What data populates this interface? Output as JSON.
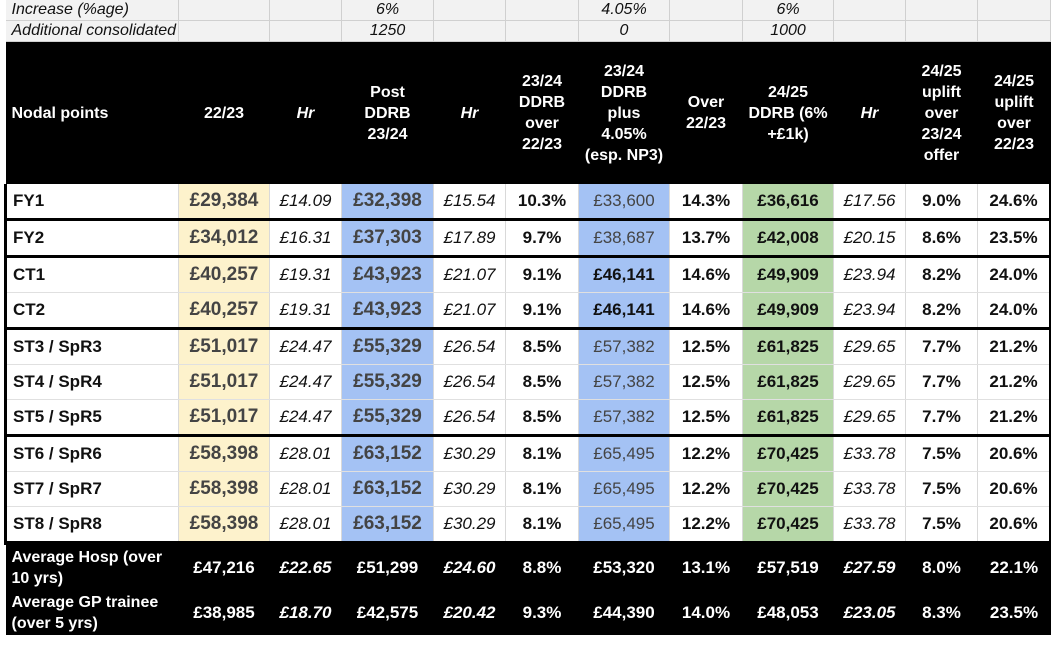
{
  "params": [
    {
      "label": "Increase (%age)",
      "post": "6%",
      "plus": "4.05%",
      "ddrb2425": "6%"
    },
    {
      "label": "Additional consolidated",
      "post": "1250",
      "plus": "0",
      "ddrb2425": "1000"
    }
  ],
  "headers": {
    "nodal": "Nodal points",
    "y2223": "22/23",
    "hr1": "Hr",
    "post": "Post DDRB 23/24",
    "hr2": "Hr",
    "over2324": "23/24 DDRB over 22/23",
    "plus": "23/24 DDRB plus 4.05% (esp. NP3)",
    "over2223": "Over 22/23",
    "ddrb2425": "24/25 DDRB (6% +£1k)",
    "hr3": "Hr",
    "uplift2324": "24/25 uplift over 23/24 offer",
    "uplift2223": "24/25 uplift over 22/23"
  },
  "rows": [
    {
      "label": "FY1",
      "y2223": "£29,384",
      "hr1": "£14.09",
      "post": "£32,398",
      "hr2": "£15.54",
      "pct1": "10.3%",
      "plus": "£33,600",
      "over": "14.3%",
      "ddrb": "£36,616",
      "hr3": "£17.56",
      "up1": "9.0%",
      "up2": "24.6%"
    },
    {
      "label": "FY2",
      "y2223": "£34,012",
      "hr1": "£16.31",
      "post": "£37,303",
      "hr2": "£17.89",
      "pct1": "9.7%",
      "plus": "£38,687",
      "over": "13.7%",
      "ddrb": "£42,008",
      "hr3": "£20.15",
      "up1": "8.6%",
      "up2": "23.5%"
    },
    {
      "label": "CT1",
      "y2223": "£40,257",
      "hr1": "£19.31",
      "post": "£43,923",
      "hr2": "£21.07",
      "pct1": "9.1%",
      "plus": "£46,141",
      "over": "14.6%",
      "ddrb": "£49,909",
      "hr3": "£23.94",
      "up1": "8.2%",
      "up2": "24.0%"
    },
    {
      "label": "CT2",
      "y2223": "£40,257",
      "hr1": "£19.31",
      "post": "£43,923",
      "hr2": "£21.07",
      "pct1": "9.1%",
      "plus": "£46,141",
      "over": "14.6%",
      "ddrb": "£49,909",
      "hr3": "£23.94",
      "up1": "8.2%",
      "up2": "24.0%"
    },
    {
      "label": "ST3 / SpR3",
      "y2223": "£51,017",
      "hr1": "£24.47",
      "post": "£55,329",
      "hr2": "£26.54",
      "pct1": "8.5%",
      "plus": "£57,382",
      "over": "12.5%",
      "ddrb": "£61,825",
      "hr3": "£29.65",
      "up1": "7.7%",
      "up2": "21.2%"
    },
    {
      "label": "ST4 / SpR4",
      "y2223": "£51,017",
      "hr1": "£24.47",
      "post": "£55,329",
      "hr2": "£26.54",
      "pct1": "8.5%",
      "plus": "£57,382",
      "over": "12.5%",
      "ddrb": "£61,825",
      "hr3": "£29.65",
      "up1": "7.7%",
      "up2": "21.2%"
    },
    {
      "label": "ST5 / SpR5",
      "y2223": "£51,017",
      "hr1": "£24.47",
      "post": "£55,329",
      "hr2": "£26.54",
      "pct1": "8.5%",
      "plus": "£57,382",
      "over": "12.5%",
      "ddrb": "£61,825",
      "hr3": "£29.65",
      "up1": "7.7%",
      "up2": "21.2%"
    },
    {
      "label": "ST6 / SpR6",
      "y2223": "£58,398",
      "hr1": "£28.01",
      "post": "£63,152",
      "hr2": "£30.29",
      "pct1": "8.1%",
      "plus": "£65,495",
      "over": "12.2%",
      "ddrb": "£70,425",
      "hr3": "£33.78",
      "up1": "7.5%",
      "up2": "20.6%"
    },
    {
      "label": "ST7 / SpR7",
      "y2223": "£58,398",
      "hr1": "£28.01",
      "post": "£63,152",
      "hr2": "£30.29",
      "pct1": "8.1%",
      "plus": "£65,495",
      "over": "12.2%",
      "ddrb": "£70,425",
      "hr3": "£33.78",
      "up1": "7.5%",
      "up2": "20.6%"
    },
    {
      "label": "ST8 / SpR8",
      "y2223": "£58,398",
      "hr1": "£28.01",
      "post": "£63,152",
      "hr2": "£30.29",
      "pct1": "8.1%",
      "plus": "£65,495",
      "over": "12.2%",
      "ddrb": "£70,425",
      "hr3": "£33.78",
      "up1": "7.5%",
      "up2": "20.6%"
    }
  ],
  "averages": [
    {
      "label": "Average Hosp (over 10 yrs)",
      "y2223": "£47,216",
      "hr1": "£22.65",
      "post": "£51,299",
      "hr2": "£24.60",
      "pct1": "8.8%",
      "plus": "£53,320",
      "over": "13.1%",
      "ddrb": "£57,519",
      "hr3": "£27.59",
      "up1": "8.0%",
      "up2": "22.1%"
    },
    {
      "label": "Average GP trainee (over 5 yrs)",
      "y2223": "£38,985",
      "hr1": "£18.70",
      "post": "£42,575",
      "hr2": "£20.42",
      "pct1": "9.3%",
      "plus": "£44,390",
      "over": "14.0%",
      "ddrb": "£48,053",
      "hr3": "£23.05",
      "up1": "8.3%",
      "up2": "23.5%"
    }
  ]
}
